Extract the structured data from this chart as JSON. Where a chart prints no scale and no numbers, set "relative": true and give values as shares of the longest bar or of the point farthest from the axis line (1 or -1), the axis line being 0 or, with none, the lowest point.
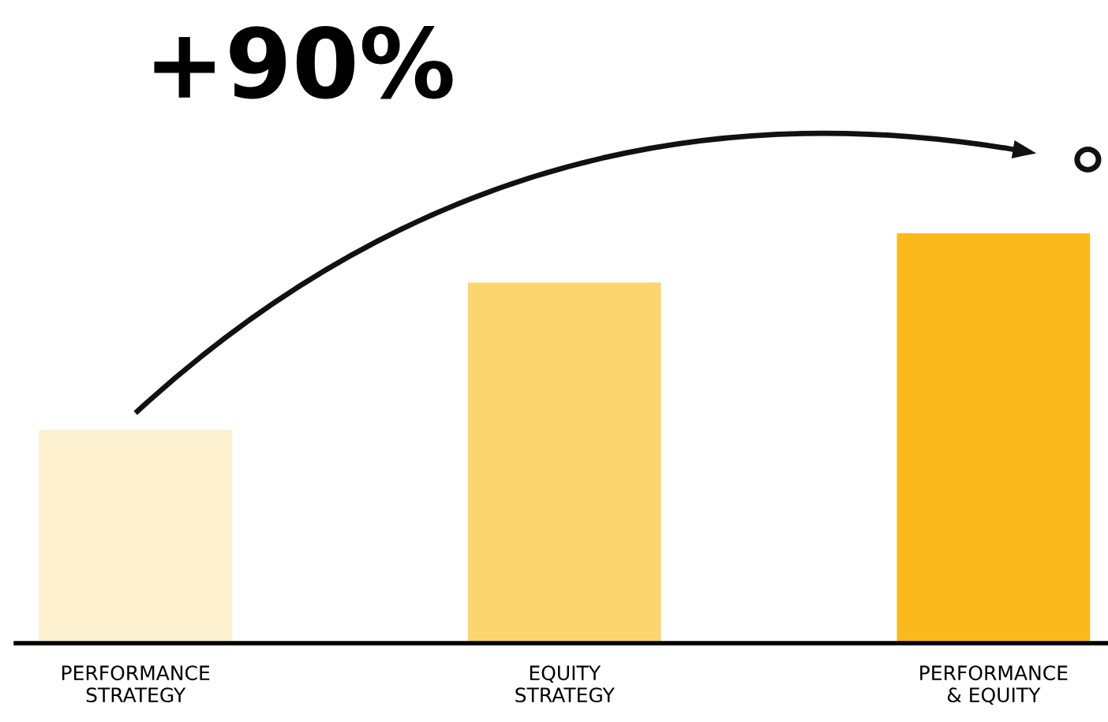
{
  "chart_data": {
    "type": "bar",
    "relative": true,
    "categories": [
      "PERFORMANCE\nSTRATEGY",
      "EQUITY\nSTRATEGY",
      "PERFORMANCE\n& EQUITY"
    ],
    "values": [
      0.52,
      0.88,
      1
    ],
    "colors": [
      "#fdf1d0",
      "#fbd56e",
      "#fbb91c"
    ],
    "annotations": [
      "+90%"
    ],
    "grid": false
  }
}
